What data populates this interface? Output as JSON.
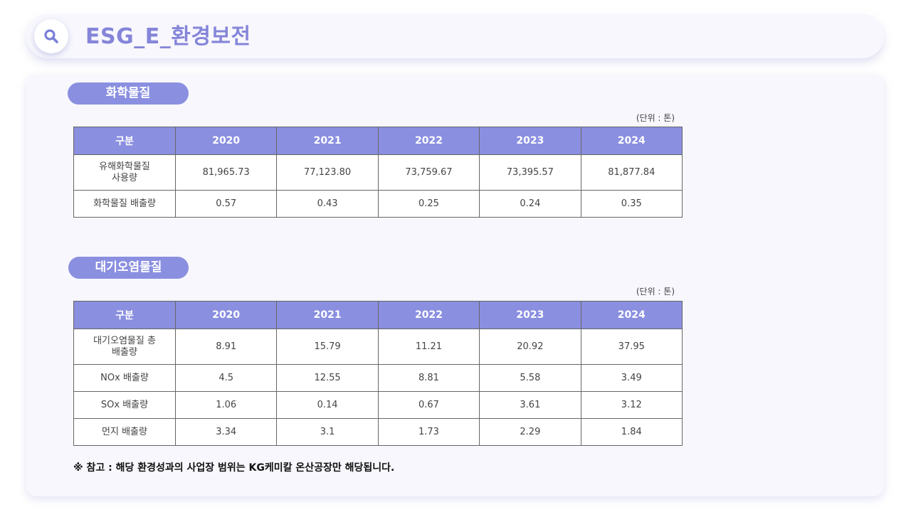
{
  "header": {
    "title": "ESG_E_환경보전",
    "icon": "search-icon"
  },
  "sections": [
    {
      "pill": "화학물질",
      "unit": "(단위 : 톤)",
      "columns": [
        "구분",
        "2020",
        "2021",
        "2022",
        "2023",
        "2024"
      ],
      "rows": [
        {
          "label": "유해화학물질\n사용량",
          "values": [
            "81,965.73",
            "77,123.80",
            "73,759.67",
            "73,395.57",
            "81,877.84"
          ]
        },
        {
          "label": "화학물질 배출량",
          "values": [
            "0.57",
            "0.43",
            "0.25",
            "0.24",
            "0.35"
          ]
        }
      ]
    },
    {
      "pill": "대기오염물질",
      "unit": "(단위 : 톤)",
      "columns": [
        "구분",
        "2020",
        "2021",
        "2022",
        "2023",
        "2024"
      ],
      "rows": [
        {
          "label": "대기오염물질 총\n배출량",
          "values": [
            "8.91",
            "15.79",
            "11.21",
            "20.92",
            "37.95"
          ]
        },
        {
          "label": "NOx 배출량",
          "values": [
            "4.5",
            "12.55",
            "8.81",
            "5.58",
            "3.49"
          ]
        },
        {
          "label": "SOx 배출량",
          "values": [
            "1.06",
            "0.14",
            "0.67",
            "3.61",
            "3.12"
          ]
        },
        {
          "label": "먼지 배출량",
          "values": [
            "3.34",
            "3.1",
            "1.73",
            "2.29",
            "1.84"
          ]
        }
      ]
    }
  ],
  "note": "※ 참고 : 해당 환경성과의 사업장 범위는 KG케미칼 온산공장만 해당됩니다.",
  "colors": {
    "accent": "#8a8fe0",
    "title": "#8585d9",
    "panel": "#f7f7fd"
  }
}
